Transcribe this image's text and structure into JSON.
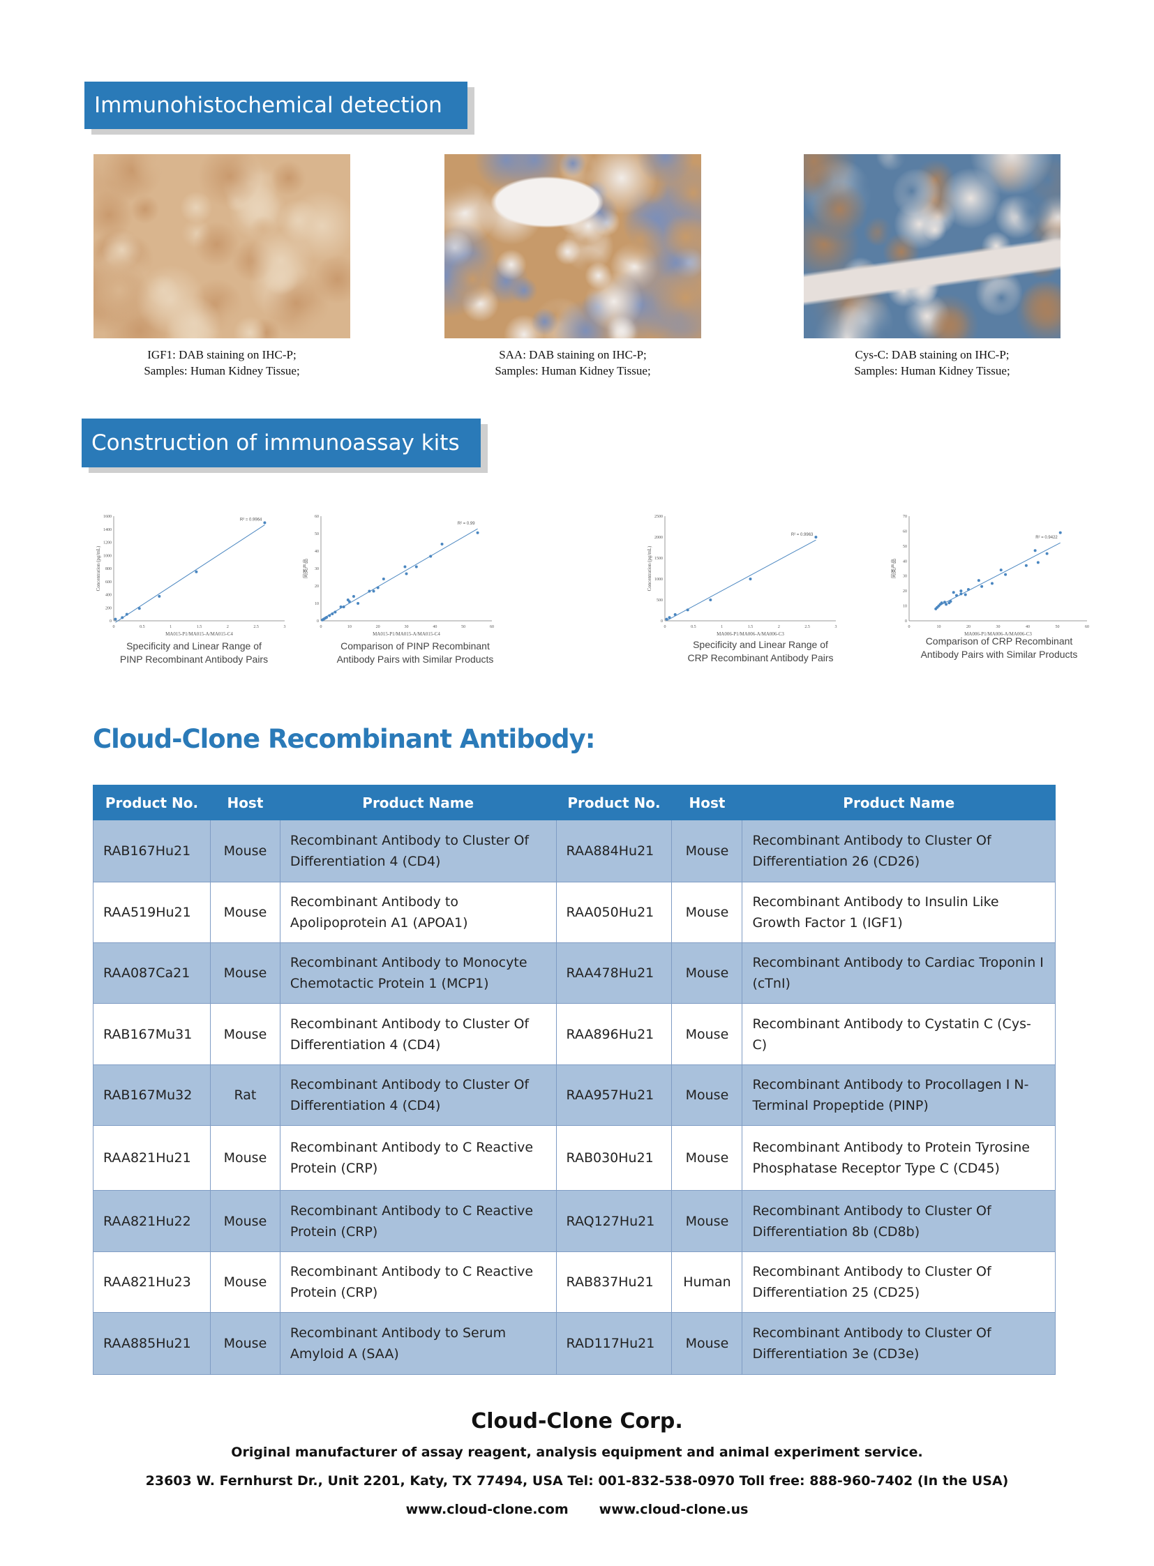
{
  "sections": {
    "ihc": "Immunohistochemical detection",
    "kits": "Construction of immunoassay kits"
  },
  "ihc_images": [
    {
      "line1": "IGF1: DAB staining on IHC-P;",
      "line2": "Samples: Human Kidney Tissue;",
      "colors": [
        "#d9b58e",
        "#c99a6e",
        "#e8d3b8"
      ]
    },
    {
      "line1": "SAA: DAB staining on IHC-P;",
      "line2": "Samples: Human Kidney Tissue;",
      "colors": [
        "#c79a6a",
        "#7d8fb8",
        "#f1ece8"
      ]
    },
    {
      "line1": "Cys-C: DAB staining on IHC-P;",
      "line2": "Samples: Human Kidney Tissue;",
      "colors": [
        "#5a7ea3",
        "#a8805e",
        "#e9e3df"
      ]
    }
  ],
  "charts": [
    {
      "line1": "Specificity and Linear Range of",
      "line2": "PINP Recombinant Antibody Pairs",
      "xlabel": "MA015-P1/MA015-A/MA015-C4",
      "ylabel": "Concentration (pg/mL)",
      "r2": "R² = 0.9964",
      "xlim": [
        0,
        3
      ],
      "ylim": [
        0,
        1600
      ],
      "xticks": [
        0,
        0.5,
        1,
        1.5,
        2,
        2.5,
        3
      ],
      "yticks": [
        0,
        200,
        400,
        600,
        800,
        1000,
        1200,
        1400,
        1600
      ],
      "points": [
        [
          0.03,
          25
        ],
        [
          0.15,
          50
        ],
        [
          0.23,
          100
        ],
        [
          0.45,
          190
        ],
        [
          0.8,
          375
        ],
        [
          1.45,
          750
        ],
        [
          2.65,
          1500
        ]
      ]
    },
    {
      "line1": "Comparison of PINP Recombinant",
      "line2": "Antibody Pairs with Similar Products",
      "xlabel": "MA015-P1/MA015-A/MA015-C4",
      "ylabel": "同类产品",
      "r2": "R² = 0.99",
      "xlim": [
        0,
        60
      ],
      "ylim": [
        0,
        60
      ],
      "xticks": [
        0,
        10,
        20,
        30,
        40,
        50,
        60
      ],
      "yticks": [
        0,
        10,
        20,
        30,
        40,
        50,
        60
      ],
      "points": [
        [
          0.5,
          0.5
        ],
        [
          1,
          1
        ],
        [
          1.5,
          1.5
        ],
        [
          2,
          2
        ],
        [
          3,
          3
        ],
        [
          4,
          4
        ],
        [
          5,
          5
        ],
        [
          7,
          8
        ],
        [
          8,
          8
        ],
        [
          9.5,
          12
        ],
        [
          10,
          11
        ],
        [
          11.5,
          14
        ],
        [
          13,
          10
        ],
        [
          17,
          17
        ],
        [
          18.5,
          17
        ],
        [
          20,
          19
        ],
        [
          22,
          24
        ],
        [
          29.5,
          31
        ],
        [
          30,
          27
        ],
        [
          33.5,
          31
        ],
        [
          38.5,
          37
        ],
        [
          42.5,
          44
        ],
        [
          55,
          50.5
        ]
      ]
    },
    {
      "line1": "Specificity and Linear Range of",
      "line2": "CRP Recombinant Antibody Pairs",
      "xlabel": "MA006-P1/MA006-A/MA006-C3",
      "ylabel": "Concentration (pg/mL)",
      "r2": "R² = 0.9963",
      "xlim": [
        0,
        3
      ],
      "ylim": [
        0,
        2500
      ],
      "xticks": [
        0,
        0.5,
        1,
        1.5,
        2,
        2.5,
        3
      ],
      "yticks": [
        0,
        500,
        1000,
        1500,
        2000,
        2500
      ],
      "points": [
        [
          0.03,
          40
        ],
        [
          0.08,
          80
        ],
        [
          0.18,
          150
        ],
        [
          0.4,
          260
        ],
        [
          0.8,
          500
        ],
        [
          1.5,
          1000
        ],
        [
          2.65,
          2000
        ]
      ]
    },
    {
      "line1": "Comparison of CRP Recombinant",
      "line2": "Antibody Pairs with Similar Products",
      "xlabel": "MA006-P1/MA006-A/MA006-C3",
      "ylabel": "同类产品",
      "r2": "R² = 0.9422",
      "xlim": [
        0,
        60
      ],
      "ylim": [
        0,
        70
      ],
      "xticks": [
        0,
        10,
        20,
        30,
        40,
        50,
        60
      ],
      "yticks": [
        0,
        10,
        20,
        30,
        40,
        50,
        60,
        70
      ],
      "points": [
        [
          9,
          8
        ],
        [
          9.5,
          9
        ],
        [
          10,
          10
        ],
        [
          10.5,
          11
        ],
        [
          11,
          12
        ],
        [
          12,
          12.5
        ],
        [
          12.5,
          11
        ],
        [
          13.5,
          12
        ],
        [
          14,
          13
        ],
        [
          15,
          19
        ],
        [
          16,
          17
        ],
        [
          17.5,
          20
        ],
        [
          17.5,
          18
        ],
        [
          19,
          17.5
        ],
        [
          20,
          21
        ],
        [
          23.5,
          27
        ],
        [
          24.5,
          23
        ],
        [
          28,
          25
        ],
        [
          31,
          34
        ],
        [
          32.5,
          31
        ],
        [
          39.5,
          37
        ],
        [
          42.5,
          47
        ],
        [
          43.5,
          39
        ],
        [
          46.5,
          45
        ],
        [
          51,
          59
        ]
      ]
    }
  ],
  "table_title": "Cloud-Clone Recombinant Antibody:",
  "table": {
    "headers": [
      "Product No.",
      "Host",
      "Product Name",
      "Product No.",
      "Host",
      "Product Name"
    ],
    "rows": [
      [
        "RAB167Hu21",
        "Mouse",
        "Recombinant Antibody to Cluster Of Differentiation 4 (CD4)",
        "RAA884Hu21",
        "Mouse",
        "Recombinant Antibody to Cluster Of Differentiation 26 (CD26)"
      ],
      [
        "RAA519Hu21",
        "Mouse",
        "Recombinant Antibody to Apolipoprotein A1 (APOA1)",
        "RAA050Hu21",
        "Mouse",
        "Recombinant Antibody to Insulin Like Growth Factor 1 (IGF1)"
      ],
      [
        "RAA087Ca21",
        "Mouse",
        "Recombinant Antibody to Monocyte Chemotactic Protein 1 (MCP1)",
        "RAA478Hu21",
        "Mouse",
        "Recombinant Antibody to Cardiac Troponin I (cTnI)"
      ],
      [
        "RAB167Mu31",
        "Mouse",
        "Recombinant Antibody to Cluster Of Differentiation 4 (CD4)",
        "RAA896Hu21",
        "Mouse",
        "Recombinant Antibody to Cystatin C (Cys-C)"
      ],
      [
        "RAB167Mu32",
        "Rat",
        "Recombinant Antibody to Cluster Of Differentiation 4 (CD4)",
        "RAA957Hu21",
        "Mouse",
        "Recombinant Antibody to Procollagen I N-Terminal Propeptide (PINP)"
      ],
      [
        "RAA821Hu21",
        "Mouse",
        "Recombinant Antibody to C Reactive Protein (CRP)",
        "RAB030Hu21",
        "Mouse",
        "Recombinant Antibody to Protein Tyrosine Phosphatase Receptor Type C (CD45)"
      ],
      [
        "RAA821Hu22",
        "Mouse",
        "Recombinant Antibody to C Reactive Protein (CRP)",
        "RAQ127Hu21",
        "Mouse",
        "Recombinant Antibody to Cluster Of Differentiation 8b (CD8b)"
      ],
      [
        "RAA821Hu23",
        "Mouse",
        "Recombinant Antibody to C Reactive Protein (CRP)",
        "RAB837Hu21",
        "Human",
        "Recombinant Antibody to Cluster Of Differentiation 25 (CD25)"
      ],
      [
        "RAA885Hu21",
        "Mouse",
        "Recombinant Antibody to Serum Amyloid A (SAA)",
        "RAD117Hu21",
        "Mouse",
        "Recombinant Antibody to Cluster Of Differentiation 3e (CD3e)"
      ]
    ]
  },
  "footer": {
    "company": "Cloud-Clone Corp.",
    "tagline": "Original manufacturer of assay reagent, analysis equipment and animal experiment service.",
    "address": "23603 W. Fernhurst Dr., Unit 2201, Katy, TX 77494, USA Tel: 001-832-538-0970 Toll free: 888-960-7402 (In the USA)",
    "web1": "www.cloud-clone.com",
    "web2": "www.cloud-clone.us"
  },
  "colors": {
    "accent": "#2a7ab8",
    "row_alt": "#a9c1dc",
    "marker": "#4a86c0"
  }
}
